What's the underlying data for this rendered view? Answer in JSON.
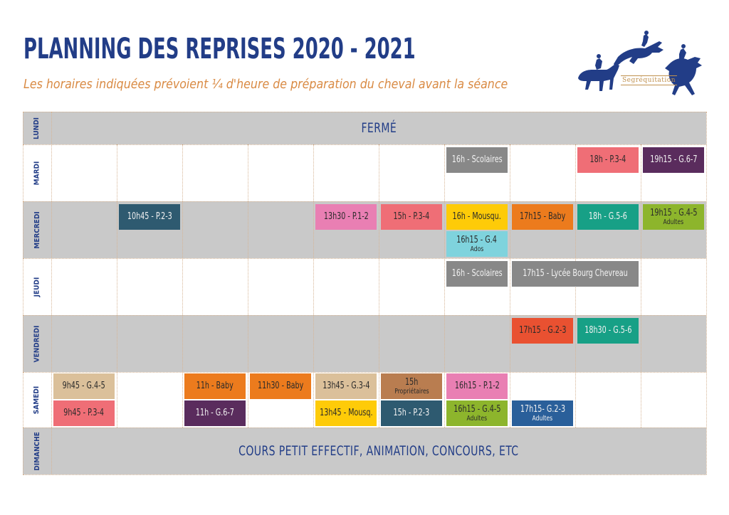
{
  "title": "PLANNING DES REPRISES 2020 - 2021",
  "subtitle": "Les horaires indiquées prévoient ¼ d'heure de préparation du cheval avant la séance",
  "logo_text": "Segréquitation",
  "days": [
    "LUNDI",
    "MARDI",
    "MERCREDI",
    "JEUDI",
    "VENDREDI",
    "SAMEDI",
    "DIMANCHE"
  ],
  "banners": {
    "lundi": "FERMÉ",
    "dimanche": "COURS PETIT EFFECTIF, ANIMATION, CONCOURS, ETC"
  },
  "colors": {
    "gray_row": "#c9c9c9",
    "navy": "#223d87",
    "orange_text": "#d98a43",
    "teal_dark": "#2e5a70",
    "pink": "#e97fb3",
    "salmon": "#ef6e76",
    "yellow": "#fecb08",
    "orange": "#ec7b1d",
    "green_teal": "#17a086",
    "olive_green": "#8db52c",
    "light_cyan": "#7fd3dd",
    "gray_box": "#888888",
    "red_orange": "#e95131",
    "beige": "#dbc09a",
    "brown": "#b97d50",
    "purple": "#5a2c5d",
    "blue": "#2a5f9a"
  },
  "sessions": {
    "mardi": [
      {
        "label": "16h - Scolaires"
      },
      {
        "label": "18h - P.3-4"
      },
      {
        "label": "19h15 - G.6-7"
      }
    ],
    "mercredi": [
      {
        "label": "10h45 - P.2-3"
      },
      {
        "label": "13h30 - P.1-2"
      },
      {
        "label": "15h - P.3-4"
      },
      {
        "label": "16h - Mousqu."
      },
      {
        "label": "16h15 - G.4",
        "sub": "Ados"
      },
      {
        "label": "17h15 - Baby"
      },
      {
        "label": "18h - G.5-6"
      },
      {
        "label": "19h15 - G.4-5",
        "sub": "Adultes"
      }
    ],
    "jeudi": [
      {
        "label": "16h - Scolaires"
      },
      {
        "label": "17h15 - Lycée Bourg Chevreau"
      }
    ],
    "vendredi": [
      {
        "label": "17h15 - G.2-3"
      },
      {
        "label": "18h30 - G.5-6"
      }
    ],
    "samedi": [
      {
        "label": "9h45 - G.4-5"
      },
      {
        "label": "9h45 - P.3-4"
      },
      {
        "label": "11h - Baby"
      },
      {
        "label": "11h - G.6-7"
      },
      {
        "label": "11h30 - Baby"
      },
      {
        "label": "13h45 - G.3-4"
      },
      {
        "label": "13h45 - Mousq."
      },
      {
        "label": "15h",
        "sub": "Propriétaires"
      },
      {
        "label": "15h - P.2-3"
      },
      {
        "label": "16h15 - P.1-2"
      },
      {
        "label": "16h15 - G.4-5",
        "sub": "Adultes"
      },
      {
        "label": "17h15- G.2-3",
        "sub": "Adultes"
      }
    ]
  }
}
